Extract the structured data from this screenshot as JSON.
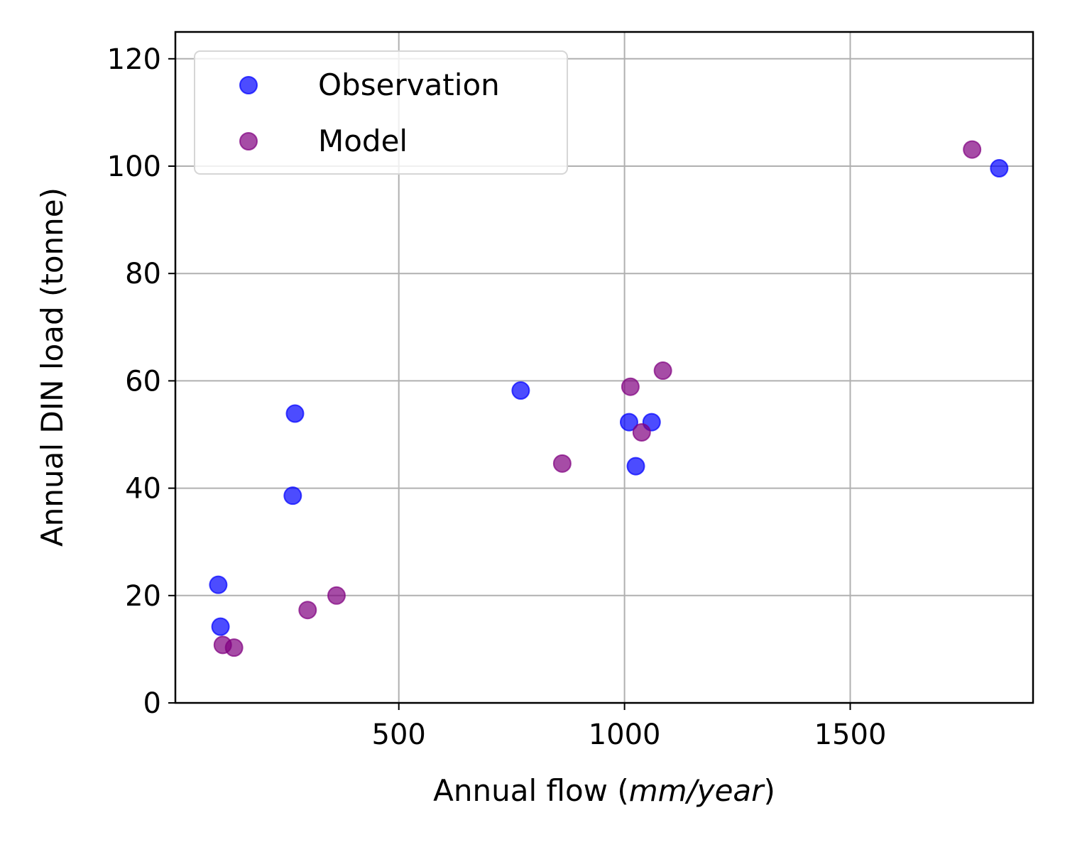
{
  "chart_data": {
    "type": "scatter",
    "xlabel_prefix": "Annual flow (",
    "xlabel_italic": "mm/year",
    "xlabel_suffix": ")",
    "ylabel": "Annual DIN load (tonne)",
    "xlim": [
      5,
      1905
    ],
    "ylim": [
      0,
      125
    ],
    "xticks": [
      500,
      1000,
      1500
    ],
    "yticks": [
      0,
      20,
      40,
      60,
      80,
      100,
      120
    ],
    "grid": true,
    "legend_position": "upper-left",
    "series": [
      {
        "name": "Observation",
        "color": "#0000ff",
        "points": [
          [
            100,
            22.0
          ],
          [
            105,
            14.2
          ],
          [
            265,
            38.6
          ],
          [
            270,
            53.9
          ],
          [
            770,
            58.2
          ],
          [
            1010,
            52.3
          ],
          [
            1025,
            44.1
          ],
          [
            1060,
            52.3
          ],
          [
            1830,
            99.6
          ]
        ]
      },
      {
        "name": "Model",
        "color": "#800080",
        "points": [
          [
            110,
            10.8
          ],
          [
            135,
            10.3
          ],
          [
            298,
            17.3
          ],
          [
            362,
            20.0
          ],
          [
            862,
            44.6
          ],
          [
            1013,
            58.9
          ],
          [
            1038,
            50.4
          ],
          [
            1085,
            61.9
          ],
          [
            1770,
            103.1
          ]
        ]
      }
    ]
  }
}
